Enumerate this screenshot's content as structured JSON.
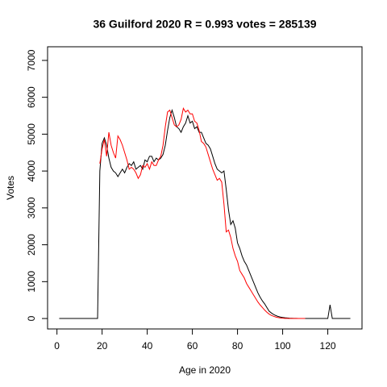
{
  "chart_data": {
    "type": "line",
    "title": "36 Guilford 2020 R = 0.993 votes = 285139",
    "xlabel": "Age in 2020",
    "ylabel": "Votes",
    "x": [
      1,
      2,
      3,
      4,
      5,
      6,
      7,
      8,
      9,
      10,
      11,
      12,
      13,
      14,
      15,
      16,
      17,
      18,
      19,
      20,
      21,
      22,
      23,
      24,
      25,
      26,
      27,
      28,
      29,
      30,
      31,
      32,
      33,
      34,
      35,
      36,
      37,
      38,
      39,
      40,
      41,
      42,
      43,
      44,
      45,
      46,
      47,
      48,
      49,
      50,
      51,
      52,
      53,
      54,
      55,
      56,
      57,
      58,
      59,
      60,
      61,
      62,
      63,
      64,
      65,
      66,
      67,
      68,
      69,
      70,
      71,
      72,
      73,
      74,
      75,
      76,
      77,
      78,
      79,
      80,
      81,
      82,
      83,
      84,
      85,
      86,
      87,
      88,
      89,
      90,
      91,
      92,
      93,
      94,
      95,
      96,
      97,
      98,
      99,
      100,
      101,
      102,
      103,
      104,
      105,
      106,
      107,
      108,
      109,
      110,
      111,
      112,
      113,
      114,
      115,
      116,
      117,
      118,
      119,
      120,
      121,
      122,
      123,
      124,
      125,
      126,
      127,
      128,
      129,
      130
    ],
    "series": [
      {
        "color": "#000000",
        "values": [
          0,
          0,
          0,
          0,
          0,
          0,
          0,
          0,
          0,
          0,
          0,
          0,
          0,
          0,
          0,
          0,
          0,
          0,
          4000,
          4750,
          4900,
          4700,
          4350,
          4100,
          4000,
          3950,
          3850,
          3950,
          4050,
          3950,
          4100,
          4200,
          4150,
          4250,
          4050,
          4100,
          4150,
          4050,
          4300,
          4250,
          4400,
          4400,
          4250,
          4350,
          4300,
          4350,
          4450,
          4700,
          5100,
          5450,
          5650,
          5450,
          5200,
          5150,
          5050,
          5200,
          5300,
          5500,
          5300,
          5350,
          5150,
          5200,
          5050,
          5050,
          4900,
          4750,
          4700,
          4600,
          4400,
          4200,
          4050,
          4000,
          3950,
          4000,
          3500,
          2950,
          2550,
          2650,
          2450,
          2050,
          1900,
          1700,
          1550,
          1450,
          1300,
          1150,
          1000,
          850,
          700,
          580,
          480,
          400,
          300,
          200,
          150,
          110,
          80,
          55,
          40,
          28,
          20,
          15,
          10,
          7,
          5,
          3,
          2,
          1,
          0,
          0,
          0,
          0,
          0,
          0,
          0,
          0,
          0,
          0,
          0,
          0,
          370,
          0,
          0,
          0,
          0,
          0,
          0,
          0,
          0,
          0
        ]
      },
      {
        "color": "#ff0000",
        "values": [
          null,
          null,
          null,
          null,
          null,
          null,
          null,
          null,
          null,
          null,
          null,
          null,
          null,
          null,
          null,
          null,
          null,
          null,
          4200,
          4600,
          4850,
          4400,
          5050,
          4700,
          4500,
          4350,
          4950,
          4850,
          4700,
          4500,
          4300,
          4050,
          4100,
          4050,
          3950,
          3800,
          3900,
          4150,
          4100,
          4200,
          4050,
          4250,
          4150,
          4150,
          4300,
          4400,
          4700,
          5200,
          5600,
          5650,
          5450,
          5250,
          5200,
          5250,
          5400,
          5700,
          5600,
          5650,
          5550,
          5550,
          5350,
          5300,
          5100,
          4800,
          4750,
          4650,
          4450,
          4250,
          4050,
          3900,
          3750,
          3800,
          3700,
          3100,
          2350,
          2400,
          2200,
          1900,
          1700,
          1550,
          1300,
          1200,
          1100,
          950,
          850,
          750,
          650,
          550,
          450,
          370,
          300,
          230,
          170,
          120,
          85,
          60,
          40,
          25,
          15,
          10,
          5,
          3,
          2,
          2,
          1,
          1,
          1,
          1,
          1,
          1,
          null,
          null,
          null,
          null,
          null,
          null,
          null,
          null,
          null,
          null,
          null,
          null,
          null,
          null,
          null,
          null,
          null,
          null,
          null,
          null
        ]
      }
    ],
    "xlim": [
      -4.16,
      135.16
    ],
    "ylim": [
      -283,
      7370
    ],
    "xticks": [
      0,
      20,
      40,
      60,
      80,
      100,
      120
    ],
    "yticks": [
      0,
      1000,
      2000,
      3000,
      4000,
      5000,
      6000,
      7000
    ]
  }
}
